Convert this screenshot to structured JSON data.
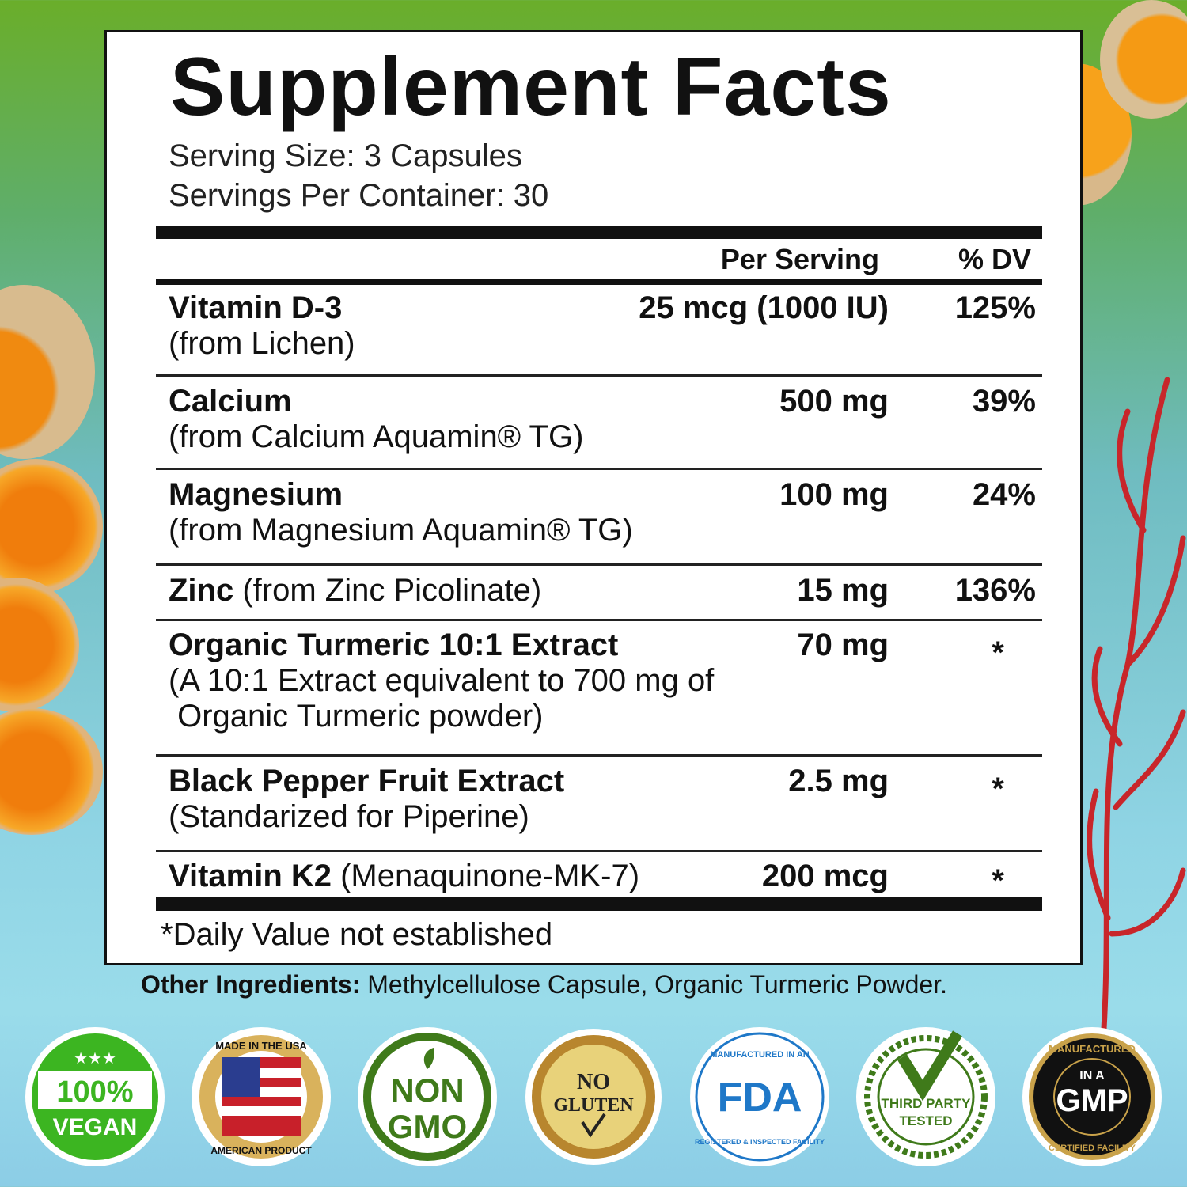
{
  "panel": {
    "title": "Supplement Facts",
    "serving_size": "Serving Size: 3 Capsules",
    "servings_per_container": "Servings Per Container: 30",
    "header_per_serving": "Per Serving",
    "header_dv": "% DV",
    "rows": [
      {
        "name": "Vitamin D-3",
        "detail": "(from Lichen)",
        "amount": "25 mcg (1000 IU)",
        "dv": "125%"
      },
      {
        "name": "Calcium",
        "detail": "(from Calcium Aquamin® TG)",
        "amount": "500 mg",
        "dv": "39%"
      },
      {
        "name": "Magnesium",
        "detail": "(from Magnesium Aquamin® TG)",
        "amount": "100 mg",
        "dv": "24%"
      },
      {
        "name": "Zinc",
        "detail": " (from Zinc Picolinate)",
        "amount": "15 mg",
        "dv": "136%"
      },
      {
        "name": "Organic Turmeric 10:1 Extract",
        "detail": "(A 10:1 Extract equivalent to 700 mg of",
        "detail2": " Organic Turmeric powder)",
        "amount": "70 mg",
        "dv": "*"
      },
      {
        "name": "Black Pepper Fruit Extract",
        "detail": "(Standarized for Piperine)",
        "amount": "2.5 mg",
        "dv": "*"
      },
      {
        "name": "Vitamin K2",
        "detail": " (Menaquinone-MK-7)",
        "amount": "200 mcg",
        "dv": "*"
      }
    ],
    "footnote": "*Daily Value not established"
  },
  "other_ingredients": {
    "label": "Other Ingredients:",
    "value": " Methylcellulose Capsule, Organic Turmeric Powder."
  },
  "badges": [
    {
      "icon": "vegan-badge",
      "text": [
        "100%",
        "VEGAN"
      ],
      "color": "#3cb521"
    },
    {
      "icon": "usa-flag-badge",
      "text": [
        "MADE IN THE USA",
        "AMERICAN PRODUCT"
      ],
      "color": "#c9a24a"
    },
    {
      "icon": "non-gmo-badge",
      "text": [
        "NON",
        "GMO"
      ],
      "color": "#3f7a1a"
    },
    {
      "icon": "no-gluten-badge",
      "text": [
        "NO",
        "GLUTEN"
      ],
      "color": "#b8862e"
    },
    {
      "icon": "fda-badge",
      "text": [
        "FDA",
        "MANUFACTURED IN AN",
        "REGISTERED & INSPECTED FACILITY"
      ],
      "color": "#1f78c8"
    },
    {
      "icon": "third-party-tested-badge",
      "text": [
        "THIRD PARTY",
        "TESTED"
      ],
      "color": "#3f7a1a"
    },
    {
      "icon": "gmp-badge",
      "text": [
        "IN A",
        "GMP",
        "MANUFACTURED",
        "CERTIFIED FACILITY"
      ],
      "color": "#111111"
    }
  ]
}
